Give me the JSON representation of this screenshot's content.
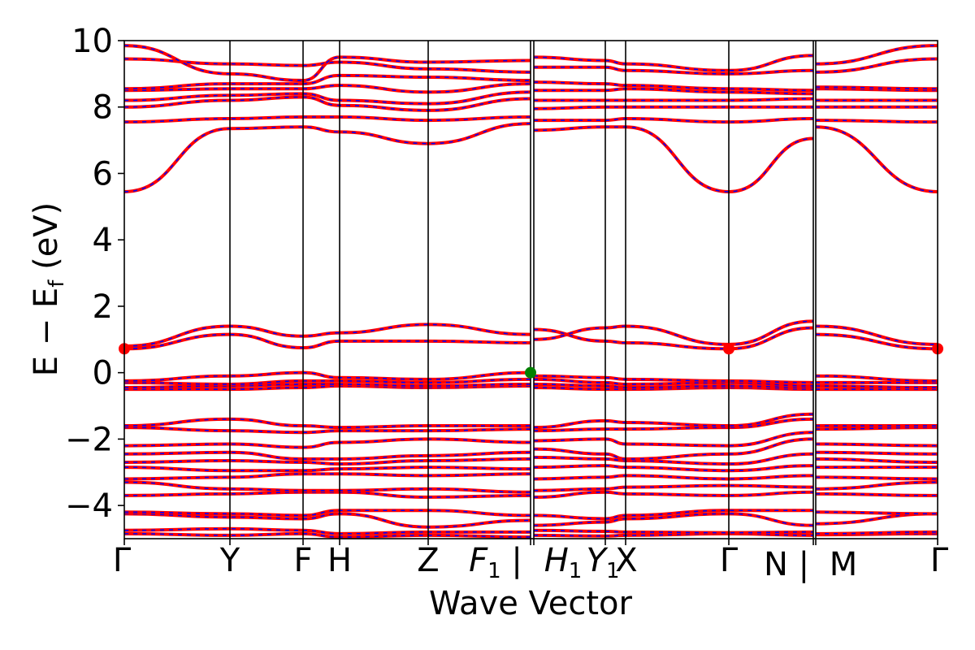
{
  "chart_data": {
    "type": "line",
    "xlabel": "Wave Vector",
    "ylabel": "E − E",
    "ylabel_sub": "f",
    "ylabel_tail": " (eV)",
    "ylim": [
      -5,
      10
    ],
    "yticks": [
      {
        "value": 10,
        "label": "10"
      },
      {
        "value": 8,
        "label": "8"
      },
      {
        "value": 6,
        "label": "6"
      },
      {
        "value": 4,
        "label": "4"
      },
      {
        "value": 2,
        "label": "2"
      },
      {
        "value": 0,
        "label": "0"
      },
      {
        "value": -2,
        "label": "−2"
      },
      {
        "value": -4,
        "label": "−4"
      }
    ],
    "xticks": [
      {
        "label": "Γ",
        "sub": ""
      },
      {
        "label": "Y",
        "sub": ""
      },
      {
        "label": "F",
        "sub": ""
      },
      {
        "label": "H",
        "sub": ""
      },
      {
        "label": "Z",
        "sub": ""
      },
      {
        "label": "F",
        "sub": "1",
        "italic": true,
        "suffix": "|"
      },
      {
        "label": "H",
        "sub": "1",
        "italic": true
      },
      {
        "label": "Y",
        "sub": "1",
        "italic": true
      },
      {
        "label": "X",
        "sub": ""
      },
      {
        "label": "Γ",
        "sub": ""
      },
      {
        "label": "N",
        "sub": "",
        "suffix": "|"
      },
      {
        "label": "M",
        "sub": ""
      },
      {
        "label": "Γ",
        "sub": ""
      }
    ],
    "segment_breaks": [
      5,
      10
    ],
    "colors": {
      "band": "#ff0000",
      "overlay": "#0000ff",
      "vbm": "#008000",
      "cbm": "#ff0000",
      "grid": "#000000"
    },
    "styles": {
      "band": "solid",
      "overlay": "dashed"
    },
    "vbm": {
      "x_index": 5,
      "energy": 0.0
    },
    "cbm": [
      {
        "x_index": 0,
        "energy": 0.72
      },
      {
        "x_index": 9,
        "energy": 0.72
      },
      {
        "x_index": 12,
        "energy": 0.72
      }
    ],
    "bands": [
      [
        -4.85,
        -4.9,
        -4.85,
        -4.95,
        -4.9,
        -4.95,
        -4.9,
        -4.92,
        -4.9,
        -4.85,
        -4.9,
        -4.88,
        -4.85
      ],
      [
        -4.75,
        -4.7,
        -4.75,
        -4.85,
        -4.8,
        -4.8,
        -4.75,
        -4.78,
        -4.8,
        -4.82,
        -4.8,
        -4.85,
        -4.8
      ],
      [
        -4.25,
        -4.35,
        -4.4,
        -4.25,
        -4.65,
        -4.45,
        -4.6,
        -4.5,
        -4.4,
        -4.25,
        -4.6,
        -4.55,
        -4.25
      ],
      [
        -4.2,
        -4.25,
        -4.3,
        -4.15,
        -4.15,
        -4.3,
        -4.3,
        -4.4,
        -4.3,
        -4.15,
        -4.15,
        -4.2,
        -4.25
      ],
      [
        -3.7,
        -3.65,
        -3.6,
        -3.6,
        -3.75,
        -3.7,
        -3.75,
        -3.6,
        -3.65,
        -3.7,
        -3.6,
        -3.65,
        -3.7
      ],
      [
        -3.3,
        -3.5,
        -3.55,
        -3.55,
        -3.5,
        -3.6,
        -3.55,
        -3.5,
        -3.45,
        -3.4,
        -3.45,
        -3.5,
        -3.3
      ],
      [
        -3.2,
        -3.15,
        -3.05,
        -3.05,
        -3.1,
        -3.05,
        -3.2,
        -3.15,
        -3.1,
        -3.2,
        -3.1,
        -3.15,
        -3.2
      ],
      [
        -2.85,
        -2.95,
        -2.95,
        -2.9,
        -2.85,
        -2.9,
        -2.85,
        -2.8,
        -2.85,
        -2.95,
        -2.8,
        -2.85,
        -2.85
      ],
      [
        -2.7,
        -2.65,
        -2.7,
        -2.75,
        -2.65,
        -2.6,
        -2.55,
        -2.6,
        -2.65,
        -2.75,
        -2.45,
        -2.6,
        -2.7
      ],
      [
        -2.45,
        -2.4,
        -2.6,
        -2.6,
        -2.5,
        -2.4,
        -2.3,
        -2.45,
        -2.6,
        -2.45,
        -2.0,
        -2.4,
        -2.45
      ],
      [
        -2.2,
        -2.15,
        -2.25,
        -2.1,
        -2.0,
        -2.1,
        -2.05,
        -2.0,
        -2.15,
        -2.2,
        -1.8,
        -2.15,
        -2.2
      ],
      [
        -1.65,
        -1.75,
        -1.8,
        -1.75,
        -1.75,
        -1.7,
        -1.75,
        -1.7,
        -1.7,
        -1.65,
        -1.4,
        -1.7,
        -1.65
      ],
      [
        -1.6,
        -1.4,
        -1.6,
        -1.65,
        -1.6,
        -1.6,
        -1.65,
        -1.45,
        -1.5,
        -1.6,
        -1.25,
        -1.6,
        -1.6
      ],
      [
        -0.5,
        -0.5,
        -0.45,
        -0.4,
        -0.45,
        -0.4,
        -0.45,
        -0.5,
        -0.5,
        -0.45,
        -0.5,
        -0.5,
        -0.5
      ],
      [
        -0.45,
        -0.4,
        -0.35,
        -0.35,
        -0.4,
        -0.35,
        -0.35,
        -0.4,
        -0.45,
        -0.4,
        -0.45,
        -0.4,
        -0.45
      ],
      [
        -0.3,
        -0.35,
        -0.25,
        -0.25,
        -0.3,
        -0.2,
        -0.2,
        -0.3,
        -0.35,
        -0.3,
        -0.4,
        -0.3,
        -0.3
      ],
      [
        -0.25,
        -0.1,
        0.0,
        -0.15,
        -0.2,
        0.0,
        -0.1,
        -0.15,
        -0.2,
        -0.25,
        -0.3,
        -0.1,
        -0.25
      ],
      [
        0.72,
        1.15,
        0.75,
        0.95,
        0.95,
        0.9,
        1.3,
        0.95,
        0.9,
        0.72,
        1.35,
        1.15,
        0.72
      ],
      [
        0.8,
        1.4,
        1.1,
        1.2,
        1.45,
        1.15,
        1.0,
        1.35,
        1.4,
        0.85,
        1.55,
        1.4,
        0.85
      ],
      [
        5.45,
        7.35,
        7.4,
        7.25,
        6.9,
        7.5,
        7.3,
        7.4,
        7.4,
        5.45,
        7.05,
        7.4,
        5.45
      ],
      [
        7.55,
        7.65,
        7.7,
        7.7,
        7.6,
        7.7,
        7.6,
        7.6,
        7.65,
        7.55,
        7.65,
        7.6,
        7.55
      ],
      [
        8.0,
        8.2,
        8.3,
        8.05,
        7.9,
        8.25,
        7.95,
        8.0,
        8.0,
        8.0,
        8.0,
        8.0,
        8.0
      ],
      [
        8.2,
        8.35,
        8.4,
        8.2,
        8.1,
        8.45,
        8.2,
        8.2,
        8.2,
        8.2,
        8.25,
        8.2,
        8.2
      ],
      [
        8.5,
        8.55,
        8.55,
        8.65,
        8.45,
        8.7,
        8.5,
        8.5,
        8.55,
        8.45,
        8.4,
        8.55,
        8.5
      ],
      [
        8.55,
        8.7,
        8.7,
        8.95,
        8.9,
        8.8,
        8.75,
        8.7,
        8.65,
        8.55,
        8.5,
        8.6,
        8.55
      ],
      [
        9.45,
        9.3,
        9.25,
        9.35,
        9.15,
        9.05,
        9.2,
        9.2,
        9.1,
        9.0,
        9.1,
        9.05,
        9.45
      ],
      [
        9.85,
        9.0,
        8.8,
        9.5,
        9.35,
        9.4,
        9.5,
        9.4,
        9.3,
        9.1,
        9.55,
        9.3,
        9.85
      ]
    ]
  }
}
